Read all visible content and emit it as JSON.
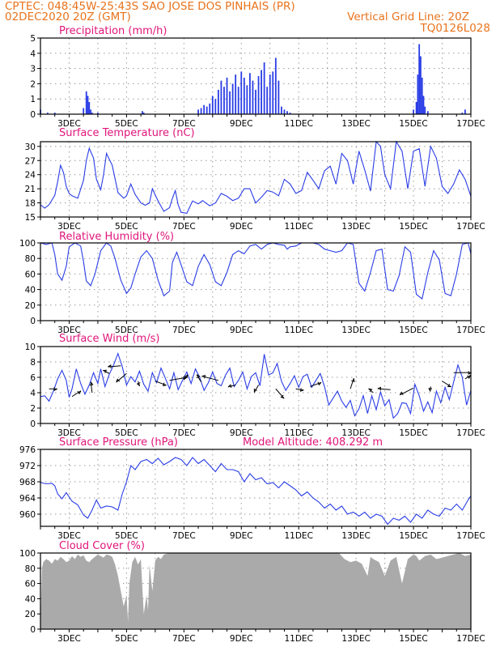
{
  "header": {
    "line1": "CPTEC:   048:45W-25:43S   SAO JOSE DOS PINHAIS (PR)",
    "line2_left": "02DEC2020 20Z (GMT)",
    "line2_right": "Vertical Grid Line: 20Z",
    "line3_right": "TQ0126L028"
  },
  "colors": {
    "header": "#e8731c",
    "panel_title": "#e0157a",
    "series": "#2a3de6",
    "cloud": "#aaaaaa",
    "grid": "#999999"
  },
  "x_axis_labels": [
    "3DEC",
    "5DEC",
    "7DEC",
    "9DEC",
    "11DEC",
    "13DEC",
    "15DEC",
    "17DEC"
  ],
  "chart_data": [
    {
      "id": "precipitation",
      "type": "bar",
      "title": "Precipitation (mm/h)",
      "ylim": [
        0,
        5
      ],
      "yticks": [
        0,
        1,
        2,
        3,
        4,
        5
      ],
      "x": [
        0.0,
        0.25,
        0.5,
        0.75,
        1.0,
        1.5,
        1.6,
        1.65,
        1.7,
        1.75,
        1.8,
        2.0,
        2.2,
        2.6,
        3.5,
        3.55,
        3.6,
        4.5,
        5.0,
        5.5,
        5.6,
        5.7,
        5.8,
        5.9,
        6.0,
        6.1,
        6.2,
        6.3,
        6.4,
        6.5,
        6.6,
        6.7,
        6.8,
        6.9,
        7.0,
        7.1,
        7.2,
        7.3,
        7.4,
        7.5,
        7.6,
        7.7,
        7.8,
        7.9,
        8.0,
        8.1,
        8.2,
        8.3,
        8.4,
        8.5,
        8.6,
        8.7,
        8.8,
        8.9,
        9.0,
        9.1,
        9.2,
        9.3,
        9.5,
        10.0,
        11.5,
        13.0,
        13.1,
        13.15,
        13.2,
        13.25,
        13.3,
        13.35,
        13.4,
        13.5,
        13.6,
        14.7,
        14.8
      ],
      "values": [
        0.3,
        0.1,
        0.1,
        0.0,
        0.0,
        0.4,
        1.5,
        1.2,
        0.8,
        0.3,
        0.1,
        0.1,
        0.0,
        0.0,
        0.0,
        0.2,
        0.1,
        0.0,
        0.0,
        0.3,
        0.4,
        0.6,
        0.5,
        0.7,
        1.2,
        1.0,
        1.6,
        2.2,
        1.8,
        2.4,
        1.5,
        2.0,
        2.6,
        1.8,
        2.8,
        2.4,
        1.9,
        2.7,
        2.2,
        1.6,
        2.5,
        2.9,
        3.4,
        1.8,
        2.6,
        2.8,
        3.7,
        2.2,
        0.5,
        0.3,
        0.2,
        0.1,
        0.0,
        0.0,
        0.0,
        0.0,
        0.0,
        0.0,
        0.0,
        0.0,
        0.0,
        0.3,
        0.8,
        2.6,
        4.6,
        3.8,
        2.4,
        1.2,
        0.5,
        0.2,
        0.0,
        0.1,
        0.3
      ]
    },
    {
      "id": "surface_temperature",
      "type": "line",
      "title": "Surface Temperature (nC)",
      "ylim": [
        15,
        31
      ],
      "yticks": [
        15,
        18,
        21,
        24,
        27,
        30
      ],
      "x": [
        0.0,
        0.15,
        0.3,
        0.5,
        0.6,
        0.7,
        0.8,
        0.9,
        1.0,
        1.1,
        1.3,
        1.5,
        1.6,
        1.7,
        1.85,
        1.95,
        2.1,
        2.2,
        2.3,
        2.5,
        2.7,
        2.9,
        3.0,
        3.15,
        3.3,
        3.5,
        3.65,
        3.8,
        3.9,
        4.1,
        4.3,
        4.5,
        4.6,
        4.7,
        4.8,
        4.9,
        5.1,
        5.3,
        5.5,
        5.65,
        5.8,
        5.9,
        6.1,
        6.3,
        6.5,
        6.7,
        6.9,
        7.1,
        7.3,
        7.5,
        7.7,
        7.9,
        8.1,
        8.3,
        8.5,
        8.7,
        8.9,
        9.1,
        9.3,
        9.5,
        9.7,
        9.9,
        10.1,
        10.3,
        10.5,
        10.7,
        10.9,
        11.1,
        11.3,
        11.5,
        11.7,
        11.85,
        12.0,
        12.2,
        12.4,
        12.6,
        12.8,
        13.0,
        13.2,
        13.4,
        13.6,
        13.8,
        14.0,
        14.2,
        14.4,
        14.6,
        14.8,
        15.0
      ],
      "values": [
        17.6,
        16.9,
        17.6,
        19.6,
        22.5,
        26.0,
        24.5,
        21.5,
        20.0,
        19.5,
        19.0,
        22.8,
        27.0,
        29.6,
        27.5,
        23.0,
        20.8,
        24.0,
        28.5,
        26.0,
        20.2,
        19.0,
        19.5,
        22.0,
        19.8,
        18.0,
        17.5,
        18.0,
        21.0,
        18.4,
        16.2,
        17.0,
        19.0,
        20.6,
        17.6,
        16.0,
        15.8,
        18.4,
        17.8,
        18.5,
        17.8,
        17.4,
        18.0,
        20.0,
        19.4,
        18.5,
        19.0,
        21.0,
        21.0,
        18.0,
        19.2,
        20.6,
        20.3,
        19.5,
        23.0,
        22.0,
        20.0,
        20.6,
        24.5,
        22.8,
        21.0,
        24.8,
        25.8,
        22.0,
        28.5,
        27.0,
        22.0,
        29.0,
        25.0,
        20.5,
        31.0,
        30.0,
        24.0,
        21.0,
        31.0,
        29.0,
        21.0,
        29.0,
        29.5,
        21.5,
        30.0,
        27.5,
        21.5,
        20.0,
        22.0,
        25.0,
        23.0,
        19.4
      ]
    },
    {
      "id": "relative_humidity",
      "type": "line",
      "title": "Relative Humidity (%)",
      "ylim": [
        0,
        100
      ],
      "yticks": [
        0,
        20,
        40,
        60,
        80,
        100
      ],
      "x": [
        0.0,
        0.2,
        0.4,
        0.5,
        0.6,
        0.75,
        0.9,
        1.0,
        1.2,
        1.4,
        1.5,
        1.6,
        1.75,
        1.9,
        2.1,
        2.3,
        2.45,
        2.6,
        2.8,
        3.0,
        3.15,
        3.3,
        3.5,
        3.7,
        3.9,
        4.1,
        4.3,
        4.5,
        4.6,
        4.75,
        4.9,
        5.1,
        5.3,
        5.5,
        5.7,
        5.9,
        6.1,
        6.3,
        6.5,
        6.7,
        6.9,
        7.1,
        7.3,
        7.5,
        7.7,
        7.9,
        8.1,
        8.3,
        8.5,
        8.6,
        8.7,
        8.9,
        9.1,
        9.3,
        9.5,
        9.7,
        9.9,
        10.1,
        10.3,
        10.5,
        10.7,
        10.9,
        11.1,
        11.3,
        11.5,
        11.7,
        11.9,
        12.1,
        12.3,
        12.5,
        12.7,
        12.9,
        13.1,
        13.3,
        13.5,
        13.7,
        13.9,
        14.1,
        14.3,
        14.5,
        14.7,
        14.9,
        15.0
      ],
      "values": [
        100,
        98,
        100,
        85,
        60,
        52,
        70,
        95,
        100,
        96,
        76,
        51,
        45,
        60,
        90,
        100,
        96,
        80,
        52,
        35,
        42,
        60,
        82,
        90,
        80,
        52,
        32,
        38,
        75,
        88,
        72,
        50,
        45,
        70,
        85,
        72,
        50,
        45,
        62,
        85,
        90,
        86,
        96,
        98,
        92,
        98,
        100,
        98,
        97,
        92,
        95,
        96,
        100,
        100,
        100,
        98,
        92,
        90,
        88,
        90,
        100,
        98,
        48,
        38,
        62,
        90,
        92,
        40,
        38,
        58,
        95,
        88,
        34,
        28,
        62,
        90,
        78,
        35,
        32,
        60,
        98,
        100,
        86
      ]
    },
    {
      "id": "surface_wind",
      "type": "line",
      "title": "Surface Wind (m/s)",
      "ylim": [
        0,
        10
      ],
      "yticks": [
        0,
        2,
        4,
        6,
        8,
        10
      ],
      "x": [
        0.0,
        0.15,
        0.3,
        0.45,
        0.6,
        0.75,
        0.9,
        1.0,
        1.1,
        1.25,
        1.4,
        1.55,
        1.7,
        1.85,
        2.0,
        2.1,
        2.25,
        2.4,
        2.55,
        2.7,
        2.85,
        3.0,
        3.15,
        3.3,
        3.45,
        3.6,
        3.75,
        3.9,
        4.05,
        4.2,
        4.35,
        4.5,
        4.65,
        4.8,
        4.95,
        5.1,
        5.25,
        5.4,
        5.55,
        5.7,
        5.85,
        6.0,
        6.15,
        6.3,
        6.45,
        6.6,
        6.75,
        6.9,
        7.05,
        7.2,
        7.35,
        7.5,
        7.65,
        7.8,
        7.95,
        8.1,
        8.25,
        8.4,
        8.55,
        8.7,
        8.85,
        9.0,
        9.15,
        9.3,
        9.45,
        9.6,
        9.75,
        9.9,
        10.05,
        10.2,
        10.35,
        10.5,
        10.65,
        10.8,
        10.95,
        11.1,
        11.25,
        11.4,
        11.55,
        11.7,
        11.85,
        12.0,
        12.15,
        12.3,
        12.45,
        12.6,
        12.75,
        12.9,
        13.05,
        13.2,
        13.35,
        13.5,
        13.65,
        13.8,
        13.95,
        14.1,
        14.25,
        14.4,
        14.55,
        14.7,
        14.85,
        15.0
      ],
      "values": [
        3.5,
        3.6,
        2.9,
        4.2,
        5.8,
        6.9,
        5.6,
        3.4,
        4.5,
        7.1,
        5.2,
        3.8,
        5.0,
        6.6,
        5.2,
        7.1,
        4.8,
        6.4,
        7.6,
        9.1,
        7.4,
        5.0,
        6.1,
        5.4,
        6.8,
        5.1,
        4.2,
        6.6,
        5.3,
        7.2,
        5.9,
        4.5,
        6.6,
        4.4,
        5.6,
        6.7,
        5.2,
        7.1,
        6.0,
        4.3,
        5.3,
        6.7,
        5.2,
        4.9,
        6.3,
        7.2,
        4.8,
        5.6,
        6.7,
        4.5,
        6.1,
        6.6,
        4.9,
        9.0,
        6.3,
        6.6,
        7.8,
        5.5,
        4.3,
        5.2,
        6.2,
        4.7,
        6.1,
        6.4,
        4.7,
        5.6,
        6.5,
        4.8,
        2.4,
        3.3,
        4.2,
        2.9,
        2.1,
        3.0,
        1.0,
        1.9,
        3.6,
        1.3,
        3.6,
        1.8,
        4.1,
        2.3,
        3.1,
        0.7,
        1.3,
        2.7,
        2.6,
        1.3,
        5.1,
        3.6,
        1.6,
        2.8,
        1.4,
        4.2,
        2.7,
        4.7,
        3.1,
        5.4,
        7.6,
        6.0,
        2.4,
        4.3
      ],
      "vectors": [
        {
          "x": 0.3,
          "value": 4.5
        },
        {
          "x": 1.1,
          "value": 3.5
        },
        {
          "x": 1.8,
          "value": 4.0
        },
        {
          "x": 2.4,
          "value": 6.5
        },
        {
          "x": 2.8,
          "value": 7.5
        },
        {
          "x": 3.0,
          "value": 6.5
        },
        {
          "x": 3.4,
          "value": 5.5
        },
        {
          "x": 4.0,
          "value": 5.5
        },
        {
          "x": 4.5,
          "value": 5.6
        },
        {
          "x": 5.0,
          "value": 5.8
        },
        {
          "x": 5.6,
          "value": 5.4
        },
        {
          "x": 6.2,
          "value": 5.6
        },
        {
          "x": 6.8,
          "value": 5.0
        },
        {
          "x": 7.6,
          "value": 5.0
        },
        {
          "x": 8.2,
          "value": 4.5
        },
        {
          "x": 8.9,
          "value": 4.5
        },
        {
          "x": 9.4,
          "value": 4.8
        },
        {
          "x": 10.8,
          "value": 4.5
        },
        {
          "x": 11.6,
          "value": 4.0
        },
        {
          "x": 12.2,
          "value": 4.4
        },
        {
          "x": 13.0,
          "value": 4.6
        },
        {
          "x": 13.6,
          "value": 4.8
        },
        {
          "x": 14.0,
          "value": 5.5
        },
        {
          "x": 14.4,
          "value": 6.6
        },
        {
          "x": 14.8,
          "value": 5.8
        }
      ]
    },
    {
      "id": "surface_pressure",
      "type": "line",
      "title": "Surface Pressure (hPa)",
      "subtitle": "Model Altitude: 408.292 m",
      "ylim": [
        957,
        976
      ],
      "yticks": [
        960,
        964,
        968,
        972,
        976
      ],
      "x": [
        0.0,
        0.2,
        0.4,
        0.5,
        0.6,
        0.75,
        0.9,
        1.1,
        1.3,
        1.5,
        1.65,
        1.8,
        1.95,
        2.1,
        2.3,
        2.5,
        2.7,
        2.85,
        3.0,
        3.15,
        3.3,
        3.5,
        3.7,
        3.9,
        4.1,
        4.3,
        4.5,
        4.7,
        4.9,
        5.1,
        5.3,
        5.5,
        5.7,
        5.9,
        6.1,
        6.3,
        6.5,
        6.7,
        6.9,
        7.1,
        7.3,
        7.5,
        7.7,
        7.9,
        8.1,
        8.3,
        8.5,
        8.7,
        8.9,
        9.1,
        9.3,
        9.5,
        9.7,
        9.9,
        10.1,
        10.3,
        10.5,
        10.7,
        10.9,
        11.1,
        11.3,
        11.5,
        11.7,
        11.9,
        12.1,
        12.3,
        12.5,
        12.7,
        12.9,
        13.1,
        13.3,
        13.5,
        13.7,
        13.9,
        14.1,
        14.3,
        14.5,
        14.7,
        14.9,
        15.0
      ],
      "values": [
        967.8,
        967.5,
        967.6,
        967.0,
        965.0,
        963.8,
        965.3,
        963.2,
        962.3,
        959.8,
        959.0,
        961.0,
        963.5,
        961.5,
        962.0,
        961.8,
        961.0,
        965.0,
        968.0,
        972.0,
        971.0,
        973.0,
        973.5,
        972.5,
        973.8,
        972.2,
        973.0,
        974.0,
        973.5,
        972.0,
        974.0,
        972.5,
        973.5,
        972.0,
        970.5,
        972.5,
        971.0,
        971.0,
        970.5,
        968.0,
        970.0,
        968.5,
        969.0,
        967.5,
        967.8,
        966.5,
        968.0,
        967.0,
        966.0,
        964.5,
        965.5,
        964.0,
        963.0,
        961.5,
        962.5,
        961.0,
        962.0,
        960.0,
        960.5,
        959.5,
        960.5,
        959.0,
        960.0,
        959.5,
        957.5,
        959.0,
        958.5,
        959.5,
        958.0,
        960.0,
        959.0,
        961.0,
        960.0,
        959.5,
        961.5,
        961.0,
        962.5,
        961.0,
        963.5,
        964.5
      ]
    },
    {
      "id": "cloud_cover",
      "type": "area",
      "title": "Cloud Cover (%)",
      "ylim": [
        0,
        100
      ],
      "yticks": [
        0,
        20,
        40,
        60,
        80,
        100
      ],
      "x": [
        0.0,
        0.05,
        0.1,
        0.2,
        0.3,
        0.4,
        0.5,
        0.6,
        0.7,
        0.8,
        0.9,
        1.0,
        1.1,
        1.2,
        1.3,
        1.4,
        1.5,
        1.6,
        1.7,
        1.8,
        1.9,
        2.0,
        2.1,
        2.2,
        2.3,
        2.4,
        2.5,
        2.6,
        2.7,
        2.8,
        2.9,
        3.0,
        3.05,
        3.1,
        3.2,
        3.3,
        3.4,
        3.5,
        3.6,
        3.7,
        3.75,
        3.8,
        3.9,
        4.0,
        4.1,
        4.2,
        4.3,
        4.4,
        4.5,
        4.6,
        4.7,
        4.8,
        4.9,
        5.0,
        5.5,
        6.0,
        6.5,
        7.0,
        7.5,
        8.0,
        8.5,
        9.0,
        9.5,
        10.0,
        10.2,
        10.4,
        10.5,
        10.6,
        10.8,
        11.0,
        11.2,
        11.4,
        11.5,
        11.6,
        11.8,
        12.0,
        12.2,
        12.4,
        12.6,
        12.8,
        13.0,
        13.1,
        13.2,
        13.4,
        13.6,
        13.8,
        14.0,
        14.2,
        14.4,
        14.6,
        14.8,
        15.0
      ],
      "values": [
        5,
        80,
        88,
        92,
        90,
        86,
        92,
        90,
        95,
        92,
        88,
        90,
        96,
        92,
        98,
        95,
        97,
        90,
        88,
        92,
        95,
        98,
        96,
        94,
        98,
        97,
        95,
        85,
        70,
        50,
        30,
        45,
        10,
        60,
        88,
        95,
        85,
        92,
        20,
        45,
        25,
        85,
        50,
        90,
        95,
        92,
        98,
        99,
        100,
        100,
        100,
        100,
        100,
        100,
        100,
        100,
        100,
        100,
        100,
        100,
        100,
        100,
        100,
        100,
        100,
        100,
        96,
        92,
        88,
        90,
        86,
        70,
        95,
        92,
        88,
        70,
        90,
        95,
        60,
        92,
        98,
        96,
        90,
        96,
        98,
        92,
        94,
        96,
        98,
        100,
        96,
        98
      ]
    }
  ]
}
